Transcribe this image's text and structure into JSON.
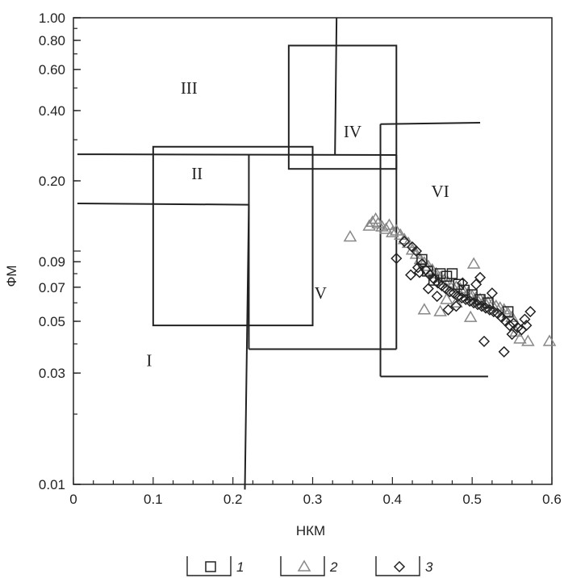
{
  "chart_data": {
    "type": "scatter",
    "title": "",
    "xlabel": "НКМ",
    "ylabel": "ФМ",
    "x_range": [
      0,
      0.6
    ],
    "y_range": [
      0.01,
      1.0
    ],
    "y_scale": "log",
    "grid": false,
    "x_ticks": [
      "0",
      "0.1",
      "0.2",
      "0.3",
      "0.4",
      "0.5",
      "0.6"
    ],
    "y_ticks": [
      {
        "value": 1.0,
        "label": "1.00"
      },
      {
        "value": 0.8,
        "label": "0.80"
      },
      {
        "value": 0.6,
        "label": "0.60"
      },
      {
        "value": 0.4,
        "label": "0.40"
      },
      {
        "value": 0.2,
        "label": "0.20"
      },
      {
        "value": 0.09,
        "label": "0.09"
      },
      {
        "value": 0.07,
        "label": "0.07"
      },
      {
        "value": 0.05,
        "label": "0.05"
      },
      {
        "value": 0.03,
        "label": "0.03"
      },
      {
        "value": 0.01,
        "label": "0.01"
      }
    ],
    "regions": [
      {
        "label": "I",
        "x": 0.095,
        "y": 0.034
      },
      {
        "label": "II",
        "x": 0.155,
        "y": 0.215
      },
      {
        "label": "III",
        "x": 0.145,
        "y": 0.5
      },
      {
        "label": "IV",
        "x": 0.35,
        "y": 0.325
      },
      {
        "label": "V",
        "x": 0.31,
        "y": 0.066
      },
      {
        "label": "VI",
        "x": 0.46,
        "y": 0.18
      }
    ],
    "boundary_lines": [
      [
        [
          0.005,
          0.26
        ],
        [
          0.405,
          0.258
        ]
      ],
      [
        [
          0.005,
          0.16
        ],
        [
          0.22,
          0.158
        ]
      ],
      [
        [
          0.22,
          0.158
        ],
        [
          0.215,
          0.0095
        ]
      ],
      [
        [
          0.22,
          0.26
        ],
        [
          0.22,
          0.038
        ]
      ],
      [
        [
          0.22,
          0.038
        ],
        [
          0.405,
          0.038
        ]
      ],
      [
        [
          0.405,
          0.258
        ],
        [
          0.405,
          0.038
        ]
      ],
      [
        [
          0.328,
          0.26
        ],
        [
          0.33,
          1.0
        ]
      ],
      [
        [
          0.385,
          0.35
        ],
        [
          0.385,
          0.029
        ]
      ],
      [
        [
          0.385,
          0.35
        ],
        [
          0.51,
          0.355
        ]
      ],
      [
        [
          0.385,
          0.029
        ],
        [
          0.52,
          0.029
        ]
      ]
    ],
    "boxes": [
      {
        "x": [
          0.1,
          0.3
        ],
        "y": [
          0.048,
          0.28
        ]
      },
      {
        "x": [
          0.27,
          0.405
        ],
        "y": [
          0.225,
          0.76
        ]
      }
    ],
    "legend": [
      {
        "marker": "square",
        "label": "1"
      },
      {
        "marker": "triangle",
        "label": "2"
      },
      {
        "marker": "diamond",
        "label": "3"
      }
    ],
    "legend_position": "bottom",
    "series": [
      {
        "name": "1",
        "marker": "square",
        "color": "#222222",
        "points": [
          [
            0.437,
            0.092
          ],
          [
            0.444,
            0.082
          ],
          [
            0.452,
            0.075
          ],
          [
            0.46,
            0.08
          ],
          [
            0.468,
            0.078
          ],
          [
            0.475,
            0.08
          ],
          [
            0.483,
            0.072
          ],
          [
            0.49,
            0.068
          ],
          [
            0.5,
            0.065
          ],
          [
            0.51,
            0.062
          ],
          [
            0.52,
            0.06
          ],
          [
            0.545,
            0.055
          ]
        ]
      },
      {
        "name": "2",
        "marker": "triangle",
        "color": "#888888",
        "points": [
          [
            0.347,
            0.115
          ],
          [
            0.371,
            0.128
          ],
          [
            0.375,
            0.133
          ],
          [
            0.379,
            0.137
          ],
          [
            0.382,
            0.131
          ],
          [
            0.387,
            0.127
          ],
          [
            0.392,
            0.124
          ],
          [
            0.396,
            0.129
          ],
          [
            0.4,
            0.12
          ],
          [
            0.405,
            0.122
          ],
          [
            0.41,
            0.117
          ],
          [
            0.415,
            0.112
          ],
          [
            0.42,
            0.108
          ],
          [
            0.425,
            0.101
          ],
          [
            0.43,
            0.097
          ],
          [
            0.435,
            0.092
          ],
          [
            0.44,
            0.089
          ],
          [
            0.445,
            0.086
          ],
          [
            0.45,
            0.083
          ],
          [
            0.455,
            0.08
          ],
          [
            0.46,
            0.077
          ],
          [
            0.465,
            0.075
          ],
          [
            0.47,
            0.073
          ],
          [
            0.475,
            0.071
          ],
          [
            0.48,
            0.07
          ],
          [
            0.485,
            0.069
          ],
          [
            0.49,
            0.067
          ],
          [
            0.495,
            0.066
          ],
          [
            0.5,
            0.064
          ],
          [
            0.505,
            0.063
          ],
          [
            0.51,
            0.062
          ],
          [
            0.515,
            0.061
          ],
          [
            0.52,
            0.06
          ],
          [
            0.525,
            0.059
          ],
          [
            0.53,
            0.058
          ],
          [
            0.535,
            0.057
          ],
          [
            0.54,
            0.056
          ],
          [
            0.545,
            0.054
          ],
          [
            0.55,
            0.052
          ],
          [
            0.555,
            0.045
          ],
          [
            0.56,
            0.042
          ],
          [
            0.57,
            0.041
          ],
          [
            0.597,
            0.041
          ],
          [
            0.46,
            0.055
          ],
          [
            0.48,
            0.06
          ],
          [
            0.498,
            0.052
          ],
          [
            0.502,
            0.088
          ],
          [
            0.468,
            0.062
          ],
          [
            0.44,
            0.056
          ]
        ]
      },
      {
        "name": "3",
        "marker": "diamond",
        "color": "#222222",
        "points": [
          [
            0.405,
            0.093
          ],
          [
            0.415,
            0.11
          ],
          [
            0.425,
            0.104
          ],
          [
            0.43,
            0.1
          ],
          [
            0.432,
            0.085
          ],
          [
            0.437,
            0.088
          ],
          [
            0.442,
            0.083
          ],
          [
            0.447,
            0.079
          ],
          [
            0.452,
            0.076
          ],
          [
            0.457,
            0.073
          ],
          [
            0.462,
            0.071
          ],
          [
            0.467,
            0.069
          ],
          [
            0.472,
            0.067
          ],
          [
            0.477,
            0.066
          ],
          [
            0.482,
            0.064
          ],
          [
            0.487,
            0.063
          ],
          [
            0.492,
            0.062
          ],
          [
            0.497,
            0.061
          ],
          [
            0.502,
            0.06
          ],
          [
            0.507,
            0.059
          ],
          [
            0.512,
            0.058
          ],
          [
            0.517,
            0.057
          ],
          [
            0.522,
            0.056
          ],
          [
            0.527,
            0.055
          ],
          [
            0.532,
            0.054
          ],
          [
            0.537,
            0.052
          ],
          [
            0.542,
            0.05
          ],
          [
            0.547,
            0.048
          ],
          [
            0.552,
            0.049
          ],
          [
            0.557,
            0.047
          ],
          [
            0.562,
            0.046
          ],
          [
            0.568,
            0.048
          ],
          [
            0.573,
            0.055
          ],
          [
            0.566,
            0.051
          ],
          [
            0.55,
            0.044
          ],
          [
            0.54,
            0.037
          ],
          [
            0.515,
            0.041
          ],
          [
            0.51,
            0.077
          ],
          [
            0.505,
            0.072
          ],
          [
            0.48,
            0.058
          ],
          [
            0.47,
            0.056
          ],
          [
            0.445,
            0.069
          ],
          [
            0.423,
            0.079
          ],
          [
            0.434,
            0.081
          ],
          [
            0.456,
            0.064
          ],
          [
            0.488,
            0.073
          ],
          [
            0.525,
            0.066
          ]
        ]
      }
    ]
  }
}
